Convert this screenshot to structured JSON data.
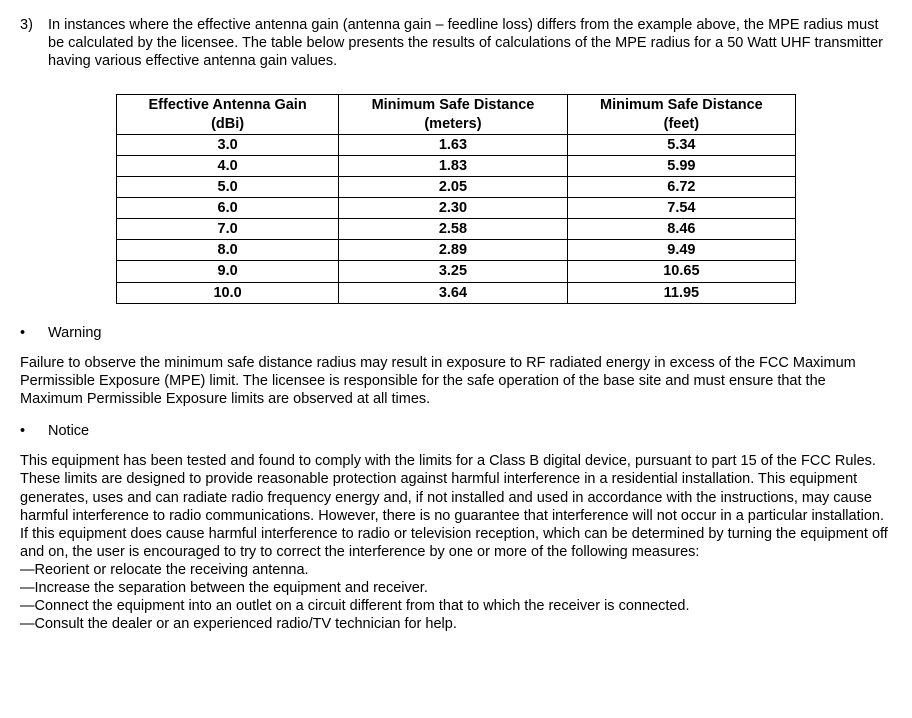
{
  "intro": {
    "number": "3)",
    "text": "In instances where the effective antenna gain (antenna gain – feedline loss) differs from the example above, the MPE radius must be calculated by the licensee.  The table below presents the results of calculations of the MPE radius for a 50 Watt UHF transmitter having various effective antenna gain values."
  },
  "table": {
    "columns": [
      "Effective Antenna Gain (dBi)",
      "Minimum Safe Distance (meters)",
      "Minimum Safe Distance (feet)"
    ],
    "header_line1": [
      "Effective Antenna Gain",
      "Minimum Safe Distance",
      "Minimum Safe Distance"
    ],
    "header_line2": [
      "(dBi)",
      "(meters)",
      "(feet)"
    ],
    "rows": [
      [
        "3.0",
        "1.63",
        "5.34"
      ],
      [
        "4.0",
        "1.83",
        "5.99"
      ],
      [
        "5.0",
        "2.05",
        "6.72"
      ],
      [
        "6.0",
        "2.30",
        "7.54"
      ],
      [
        "7.0",
        "2.58",
        "8.46"
      ],
      [
        "8.0",
        "2.89",
        "9.49"
      ],
      [
        "9.0",
        "3.25",
        "10.65"
      ],
      [
        "10.0",
        "3.64",
        "11.95"
      ]
    ],
    "col_widths_pct": [
      33,
      33,
      34
    ],
    "border_color": "#000000",
    "background_color": "#ffffff"
  },
  "warning": {
    "bullet": "•",
    "label": "Warning",
    "text": "Failure to observe the minimum safe distance radius may result in exposure to RF radiated energy in excess of the FCC Maximum Permissible Exposure (MPE) limit.  The licensee is responsible for the safe operation of the base site and must ensure that the Maximum Permissible Exposure limits are observed at all times."
  },
  "notice": {
    "bullet": "•",
    "label": "Notice",
    "text": "This equipment has been tested and found to comply with the limits for a Class B digital device, pursuant to part 15 of the FCC Rules. These limits are designed to provide reasonable protection against harmful interference in a residential installation. This equipment generates, uses and can radiate radio frequency energy and, if not installed and used in accordance with the instructions, may cause harmful interference to radio communications. However, there is no guarantee that interference will not occur in a particular installation. If this equipment does cause harmful interference to radio or television reception, which can be determined by turning the equipment off and on, the user is encouraged to try to correct the interference by one or more of the following measures:",
    "measures": [
      "—Reorient or relocate the receiving antenna.",
      "—Increase the separation between the equipment and receiver.",
      "—Connect the equipment into an outlet on a circuit different from that to which the receiver is connected.",
      "—Consult the dealer or an experienced radio/TV technician for help."
    ]
  }
}
